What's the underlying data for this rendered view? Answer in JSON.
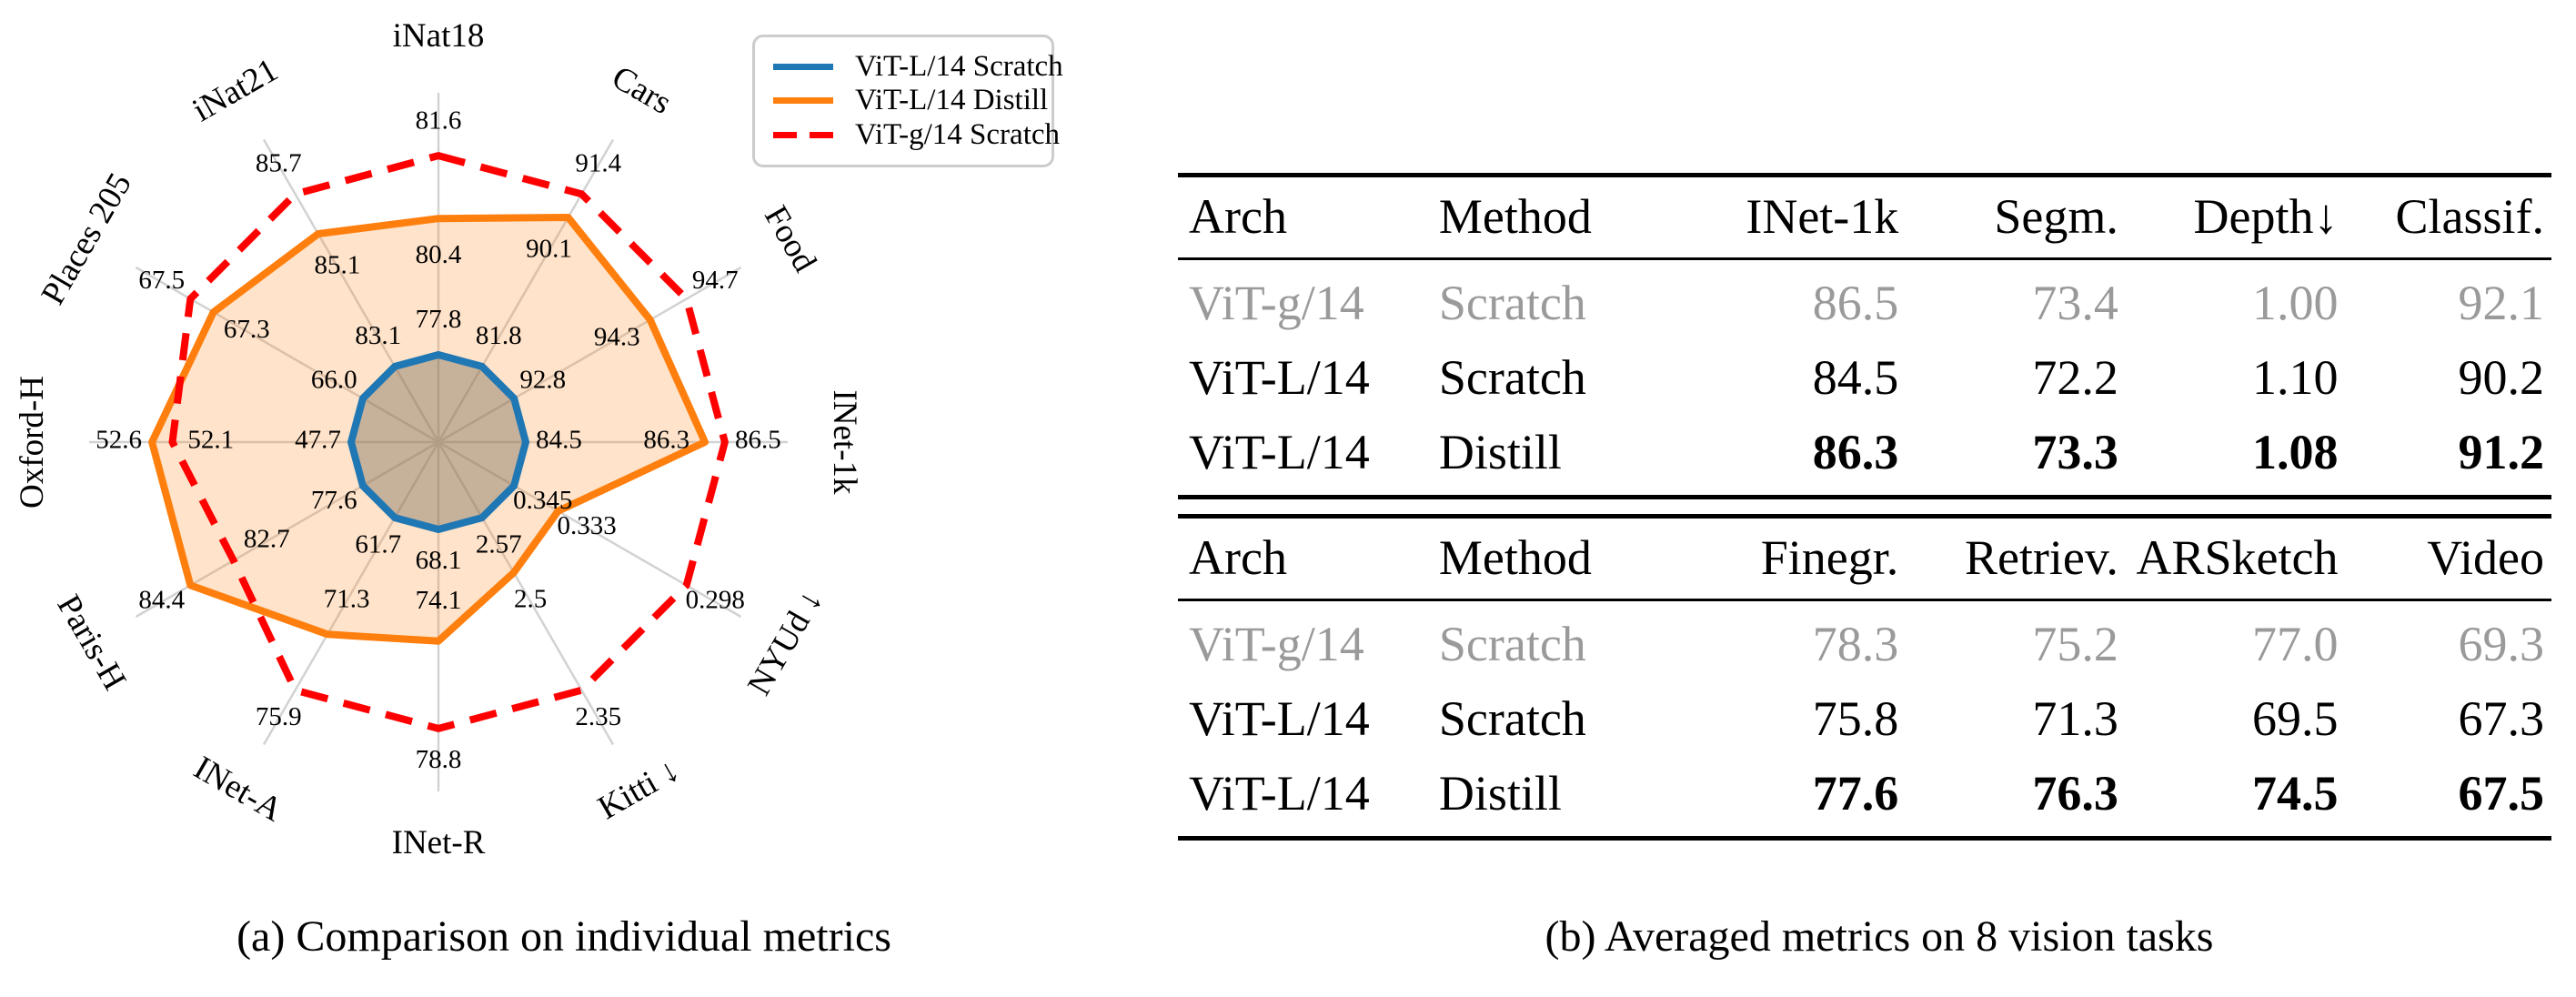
{
  "figure": {
    "caption_a": "(a) Comparison on individual metrics",
    "caption_b": "(b) Averaged metrics on 8 vision tasks"
  },
  "legend": {
    "items": [
      {
        "label": "ViT-L/14 Scratch",
        "color": "#1f77b4",
        "dash": "solid"
      },
      {
        "label": "ViT-L/14 Distill",
        "color": "#ff7f0e",
        "dash": "solid"
      },
      {
        "label": "ViT-g/14 Scratch",
        "color": "#ff0000",
        "dash": "dashed"
      }
    ]
  },
  "chart_data": {
    "type": "radar",
    "axes": [
      "iNat18",
      "Cars",
      "Food",
      "INet-1k",
      "NYUd ↓",
      "Kitti ↓",
      "INet-R",
      "INet-A",
      "Paris-H",
      "Oxford-H",
      "Places 205",
      "iNat21"
    ],
    "lower_is_better": [
      false,
      false,
      false,
      false,
      true,
      true,
      false,
      false,
      false,
      false,
      false,
      false
    ],
    "grid": "spokes-only",
    "legend_position": "top-right",
    "series": [
      {
        "name": "ViT-L/14 Scratch",
        "color": "#1f77b4",
        "style": "solid",
        "fill": "rgba(128,116,98,0.45)",
        "values": [
          77.8,
          81.8,
          92.8,
          84.5,
          0.345,
          2.57,
          68.1,
          61.7,
          77.6,
          47.7,
          66.0,
          83.1
        ],
        "value_labels": [
          "77.8",
          "81.8",
          "92.8",
          "84.5",
          "0.345",
          "2.57",
          "68.1",
          "61.7",
          "77.6",
          "47.7",
          "66.0",
          "83.1"
        ]
      },
      {
        "name": "ViT-L/14 Distill",
        "color": "#ff7f0e",
        "style": "solid",
        "fill": "rgba(255,127,14,0.22)",
        "values": [
          80.4,
          90.1,
          94.3,
          86.3,
          0.333,
          2.5,
          74.1,
          71.3,
          84.4,
          52.6,
          67.3,
          85.1
        ],
        "value_labels": [
          "80.4",
          "90.1",
          "94.3",
          "86.3",
          "0.333",
          "2.5",
          "74.1",
          "71.3",
          "84.4",
          "52.6",
          "67.3",
          "85.1"
        ]
      },
      {
        "name": "ViT-g/14 Scratch",
        "color": "#ff0000",
        "style": "dashed",
        "fill": "none",
        "values": [
          81.6,
          91.4,
          94.7,
          86.5,
          0.298,
          2.35,
          78.8,
          75.9,
          82.7,
          52.1,
          67.5,
          85.7
        ],
        "value_labels": [
          "81.6",
          "91.4",
          "94.7",
          "86.5",
          "0.298",
          "2.35",
          "78.8",
          "75.9",
          "82.7",
          "52.1",
          "67.5",
          "85.7"
        ]
      }
    ]
  },
  "tables": [
    {
      "headers": [
        "Arch",
        "Method",
        "INet-1k",
        "Segm.",
        "Depth↓",
        "Classif."
      ],
      "rows": [
        {
          "cells": [
            "ViT-g/14",
            "Scratch",
            "86.5",
            "73.4",
            "1.00",
            "92.1"
          ],
          "muted": true,
          "bold_values": false
        },
        {
          "cells": [
            "ViT-L/14",
            "Scratch",
            "84.5",
            "72.2",
            "1.10",
            "90.2"
          ],
          "muted": false,
          "bold_values": false
        },
        {
          "cells": [
            "ViT-L/14",
            "Distill",
            "86.3",
            "73.3",
            "1.08",
            "91.2"
          ],
          "muted": false,
          "bold_values": true
        }
      ]
    },
    {
      "headers": [
        "Arch",
        "Method",
        "Finegr.",
        "Retriev.",
        "ARSketch",
        "Video"
      ],
      "rows": [
        {
          "cells": [
            "ViT-g/14",
            "Scratch",
            "78.3",
            "75.2",
            "77.0",
            "69.3"
          ],
          "muted": true,
          "bold_values": false
        },
        {
          "cells": [
            "ViT-L/14",
            "Scratch",
            "75.8",
            "71.3",
            "69.5",
            "67.3"
          ],
          "muted": false,
          "bold_values": false
        },
        {
          "cells": [
            "ViT-L/14",
            "Distill",
            "77.6",
            "76.3",
            "74.5",
            "67.5"
          ],
          "muted": false,
          "bold_values": true
        }
      ]
    }
  ]
}
